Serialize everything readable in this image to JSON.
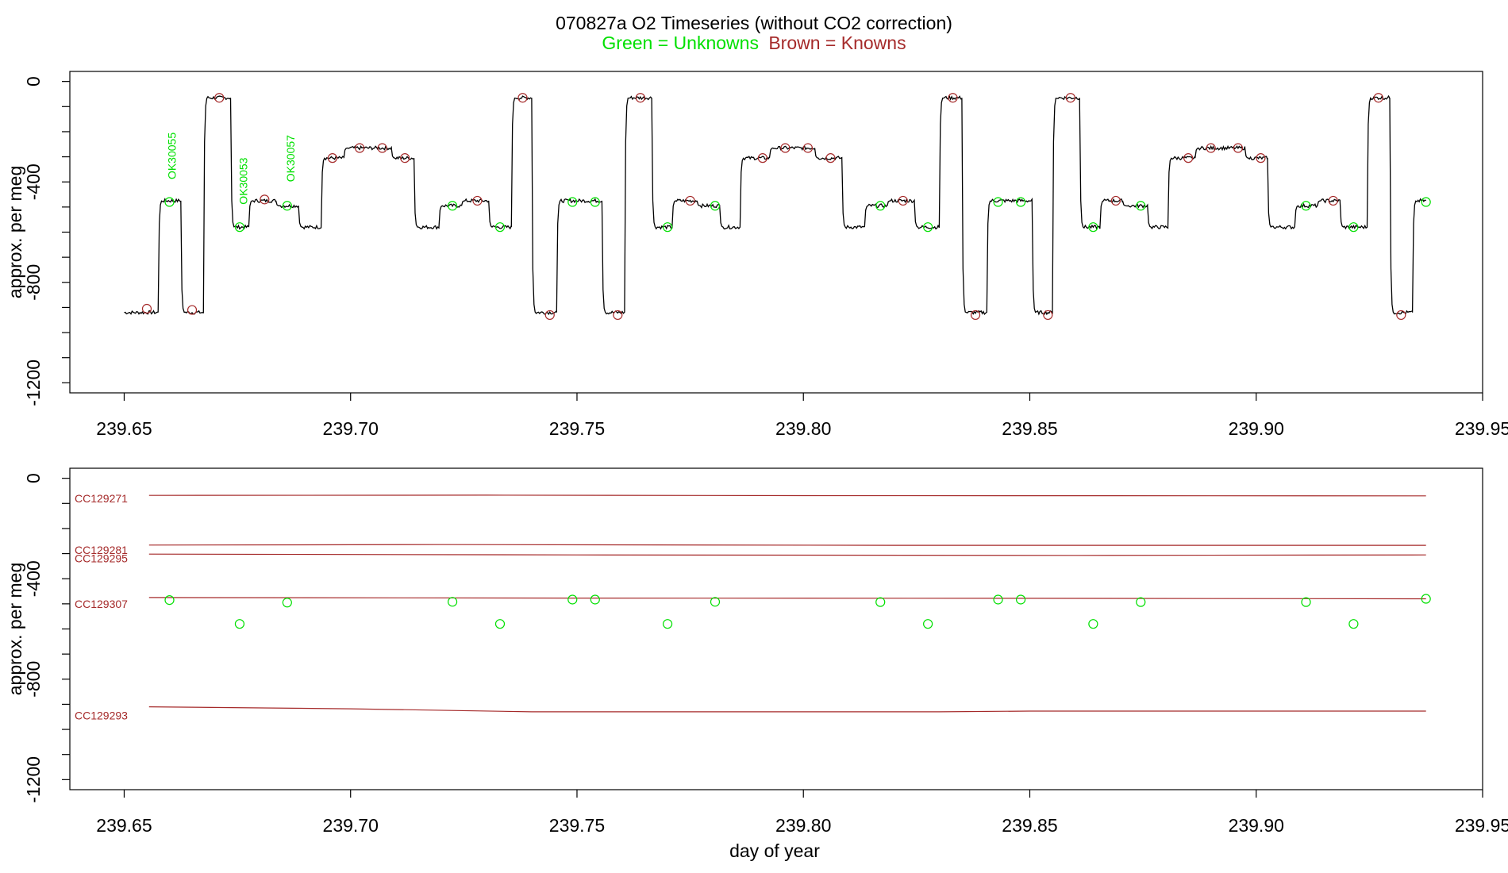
{
  "title": "070827a   O2 Timeseries (without CO2 correction)",
  "legend": {
    "unknowns_text": "Green = Unknowns",
    "knowns_text": "Brown = Knowns",
    "unknowns_color": "#00e000",
    "knowns_color": "#a52a2a"
  },
  "colors": {
    "trace": "#000000",
    "known": "#a52a2a",
    "unknown": "#00e000",
    "axis": "#000000"
  },
  "chart_data": [
    {
      "type": "line",
      "ylabel": "approx. per meg",
      "xlabel": "",
      "xlim": [
        239.638,
        239.95
      ],
      "ylim": [
        -1240,
        40
      ],
      "xticks": [
        239.65,
        239.7,
        239.75,
        239.8,
        239.85,
        239.9,
        239.95
      ],
      "xtick_labels": [
        "239.65",
        "239.70",
        "239.75",
        "239.80",
        "239.85",
        "239.90",
        "239.95"
      ],
      "yticks": [
        0,
        -400,
        -800,
        -1200
      ],
      "ytick_labels": [
        "0",
        "-400",
        "-800",
        "-1200"
      ],
      "grid": false,
      "trace_segments": [
        {
          "x0": 239.65,
          "x1": 239.6575,
          "level": "CC129293"
        },
        {
          "x0": 239.6575,
          "x1": 239.6625,
          "level": "CC129307"
        },
        {
          "x0": 239.6625,
          "x1": 239.6675,
          "level": "CC129293"
        },
        {
          "x0": 239.6675,
          "x1": 239.6735,
          "level": "CC129271"
        },
        {
          "x0": 239.6735,
          "x1": 239.6775,
          "level": "U1"
        },
        {
          "x0": 239.6775,
          "x1": 239.6835,
          "level": "CC129307"
        },
        {
          "x0": 239.6835,
          "x1": 239.6885,
          "level": "U2"
        },
        {
          "x0": 239.6885,
          "x1": 239.6935,
          "level": "U1"
        },
        {
          "x0": 239.6935,
          "x1": 239.6985,
          "level": "CC129295"
        },
        {
          "x0": 239.6985,
          "x1": 239.709,
          "level": "CC129281"
        },
        {
          "x0": 239.709,
          "x1": 239.714,
          "level": "CC129295"
        },
        {
          "x0": 239.714,
          "x1": 239.7195,
          "level": "U1"
        },
        {
          "x0": 239.7195,
          "x1": 239.7245,
          "level": "U2"
        },
        {
          "x0": 239.7245,
          "x1": 239.7305,
          "level": "CC129307"
        },
        {
          "x0": 239.7305,
          "x1": 239.7355,
          "level": "U1"
        },
        {
          "x0": 239.7355,
          "x1": 239.74,
          "level": "CC129271"
        },
        {
          "x0": 239.74,
          "x1": 239.7455,
          "level": "CC129293"
        },
        {
          "x0": 239.7455,
          "x1": 239.7555,
          "level": "CC129307"
        },
        {
          "x0": 239.7555,
          "x1": 239.7605,
          "level": "CC129293"
        },
        {
          "x0": 239.7605,
          "x1": 239.7665,
          "level": "CC129271"
        },
        {
          "x0": 239.7665,
          "x1": 239.771,
          "level": "U1"
        },
        {
          "x0": 239.771,
          "x1": 239.7765,
          "level": "CC129307"
        },
        {
          "x0": 239.7765,
          "x1": 239.7815,
          "level": "U2"
        },
        {
          "x0": 239.7815,
          "x1": 239.786,
          "level": "U1"
        },
        {
          "x0": 239.786,
          "x1": 239.7925,
          "level": "CC129295"
        },
        {
          "x0": 239.7925,
          "x1": 239.8025,
          "level": "CC129281"
        },
        {
          "x0": 239.8025,
          "x1": 239.8085,
          "level": "CC129295"
        },
        {
          "x0": 239.8085,
          "x1": 239.8135,
          "level": "U1"
        },
        {
          "x0": 239.8135,
          "x1": 239.8185,
          "level": "U2"
        },
        {
          "x0": 239.8185,
          "x1": 239.8245,
          "level": "CC129307"
        },
        {
          "x0": 239.8245,
          "x1": 239.83,
          "level": "U1"
        },
        {
          "x0": 239.83,
          "x1": 239.835,
          "level": "CC129271"
        },
        {
          "x0": 239.835,
          "x1": 239.8405,
          "level": "CC129293"
        },
        {
          "x0": 239.8405,
          "x1": 239.8505,
          "level": "CC129307"
        },
        {
          "x0": 239.8505,
          "x1": 239.855,
          "level": "CC129293"
        },
        {
          "x0": 239.855,
          "x1": 239.861,
          "level": "CC129271"
        },
        {
          "x0": 239.861,
          "x1": 239.8655,
          "level": "U1"
        },
        {
          "x0": 239.8655,
          "x1": 239.8705,
          "level": "CC129307"
        },
        {
          "x0": 239.8705,
          "x1": 239.876,
          "level": "U2"
        },
        {
          "x0": 239.876,
          "x1": 239.8805,
          "level": "U1"
        },
        {
          "x0": 239.8805,
          "x1": 239.8865,
          "level": "CC129295"
        },
        {
          "x0": 239.8865,
          "x1": 239.8975,
          "level": "CC129281"
        },
        {
          "x0": 239.8975,
          "x1": 239.9025,
          "level": "CC129295"
        },
        {
          "x0": 239.9025,
          "x1": 239.9085,
          "level": "U1"
        },
        {
          "x0": 239.9085,
          "x1": 239.9135,
          "level": "U2"
        },
        {
          "x0": 239.9135,
          "x1": 239.9185,
          "level": "CC129307"
        },
        {
          "x0": 239.9185,
          "x1": 239.9245,
          "level": "U1"
        },
        {
          "x0": 239.9245,
          "x1": 239.9295,
          "level": "CC129271"
        },
        {
          "x0": 239.9295,
          "x1": 239.9345,
          "level": "CC129293"
        },
        {
          "x0": 239.9345,
          "x1": 239.9375,
          "level": "CC129307"
        }
      ],
      "levels": {
        "CC129271": -65,
        "CC129281": -265,
        "CC129295": -305,
        "CC129307": -475,
        "CC129293": -920,
        "U1": -580,
        "U2": -495
      },
      "knowns": [
        {
          "x": 239.655,
          "y": -905
        },
        {
          "x": 239.665,
          "y": -910
        },
        {
          "x": 239.671,
          "y": -65
        },
        {
          "x": 239.681,
          "y": -470
        },
        {
          "x": 239.696,
          "y": -305
        },
        {
          "x": 239.702,
          "y": -265
        },
        {
          "x": 239.707,
          "y": -265
        },
        {
          "x": 239.712,
          "y": -305
        },
        {
          "x": 239.728,
          "y": -475
        },
        {
          "x": 239.738,
          "y": -65
        },
        {
          "x": 239.744,
          "y": -930
        },
        {
          "x": 239.759,
          "y": -930
        },
        {
          "x": 239.764,
          "y": -65
        },
        {
          "x": 239.775,
          "y": -475
        },
        {
          "x": 239.791,
          "y": -305
        },
        {
          "x": 239.796,
          "y": -265
        },
        {
          "x": 239.801,
          "y": -265
        },
        {
          "x": 239.806,
          "y": -305
        },
        {
          "x": 239.822,
          "y": -475
        },
        {
          "x": 239.833,
          "y": -65
        },
        {
          "x": 239.838,
          "y": -930
        },
        {
          "x": 239.854,
          "y": -930
        },
        {
          "x": 239.859,
          "y": -65
        },
        {
          "x": 239.869,
          "y": -475
        },
        {
          "x": 239.885,
          "y": -305
        },
        {
          "x": 239.89,
          "y": -265
        },
        {
          "x": 239.896,
          "y": -265
        },
        {
          "x": 239.901,
          "y": -305
        },
        {
          "x": 239.917,
          "y": -475
        },
        {
          "x": 239.927,
          "y": -65
        },
        {
          "x": 239.932,
          "y": -930
        }
      ],
      "unknowns": [
        {
          "x": 239.66,
          "y": -480
        },
        {
          "x": 239.6755,
          "y": -580
        },
        {
          "x": 239.686,
          "y": -495
        },
        {
          "x": 239.7225,
          "y": -495
        },
        {
          "x": 239.733,
          "y": -580
        },
        {
          "x": 239.749,
          "y": -480
        },
        {
          "x": 239.754,
          "y": -480
        },
        {
          "x": 239.77,
          "y": -580
        },
        {
          "x": 239.7805,
          "y": -495
        },
        {
          "x": 239.817,
          "y": -495
        },
        {
          "x": 239.8275,
          "y": -580
        },
        {
          "x": 239.843,
          "y": -480
        },
        {
          "x": 239.848,
          "y": -480
        },
        {
          "x": 239.864,
          "y": -580
        },
        {
          "x": 239.8745,
          "y": -495
        },
        {
          "x": 239.911,
          "y": -495
        },
        {
          "x": 239.9215,
          "y": -580
        },
        {
          "x": 239.9375,
          "y": -480
        }
      ],
      "annotations": [
        {
          "text": "OK30055",
          "x": 239.6605,
          "y": -390
        },
        {
          "text": "OK30053",
          "x": 239.6763,
          "y": -490
        },
        {
          "text": "OK30057",
          "x": 239.6867,
          "y": -400
        }
      ]
    },
    {
      "type": "line",
      "ylabel": "approx. per meg",
      "xlabel": "day of year",
      "xlim": [
        239.638,
        239.95
      ],
      "ylim": [
        -1240,
        40
      ],
      "xticks": [
        239.65,
        239.7,
        239.75,
        239.8,
        239.85,
        239.9,
        239.95
      ],
      "xtick_labels": [
        "239.65",
        "239.70",
        "239.75",
        "239.80",
        "239.85",
        "239.90",
        "239.95"
      ],
      "yticks": [
        0,
        -400,
        -800,
        -1200
      ],
      "ytick_labels": [
        "0",
        "-400",
        "-800",
        "-1200"
      ],
      "grid": false,
      "x_start": 239.6555,
      "x_end": 239.9375,
      "standards": [
        {
          "name": "CC129271",
          "label_y": -80,
          "points": [
            [
              239.6555,
              -68
            ],
            [
              239.73,
              -67
            ],
            [
              239.8,
              -69
            ],
            [
              239.9375,
              -70
            ]
          ]
        },
        {
          "name": "CC129281",
          "label_y": -285,
          "points": [
            [
              239.6555,
              -266
            ],
            [
              239.72,
              -264
            ],
            [
              239.82,
              -267
            ],
            [
              239.9375,
              -267
            ]
          ]
        },
        {
          "name": "CC129295",
          "label_y": -318,
          "points": [
            [
              239.6555,
              -302
            ],
            [
              239.75,
              -305
            ],
            [
              239.86,
              -307
            ],
            [
              239.9375,
              -305
            ]
          ]
        },
        {
          "name": "CC129307",
          "label_y": -500,
          "points": [
            [
              239.6555,
              -475
            ],
            [
              239.75,
              -477
            ],
            [
              239.85,
              -478
            ],
            [
              239.9375,
              -480
            ]
          ]
        },
        {
          "name": "CC129293",
          "label_y": -945,
          "points": [
            [
              239.6555,
              -910
            ],
            [
              239.7,
              -918
            ],
            [
              239.74,
              -930
            ],
            [
              239.83,
              -930
            ],
            [
              239.85,
              -927
            ],
            [
              239.9375,
              -927
            ]
          ]
        }
      ],
      "unknowns": [
        {
          "x": 239.66,
          "y": -485
        },
        {
          "x": 239.6755,
          "y": -580
        },
        {
          "x": 239.686,
          "y": -495
        },
        {
          "x": 239.7225,
          "y": -492
        },
        {
          "x": 239.733,
          "y": -580
        },
        {
          "x": 239.749,
          "y": -483
        },
        {
          "x": 239.754,
          "y": -483
        },
        {
          "x": 239.77,
          "y": -580
        },
        {
          "x": 239.7805,
          "y": -492
        },
        {
          "x": 239.817,
          "y": -493
        },
        {
          "x": 239.8275,
          "y": -580
        },
        {
          "x": 239.843,
          "y": -483
        },
        {
          "x": 239.848,
          "y": -483
        },
        {
          "x": 239.864,
          "y": -580
        },
        {
          "x": 239.8745,
          "y": -493
        },
        {
          "x": 239.911,
          "y": -493
        },
        {
          "x": 239.9215,
          "y": -580
        },
        {
          "x": 239.9375,
          "y": -480
        }
      ]
    }
  ]
}
